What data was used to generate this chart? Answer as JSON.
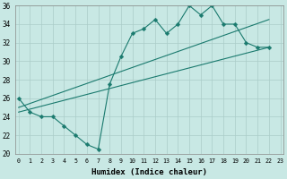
{
  "xlabel": "Humidex (Indice chaleur)",
  "xlim_min": -0.3,
  "xlim_max": 23.3,
  "ylim_min": 20,
  "ylim_max": 36,
  "xticks": [
    0,
    1,
    2,
    3,
    4,
    5,
    6,
    7,
    8,
    9,
    10,
    11,
    12,
    13,
    14,
    15,
    16,
    17,
    18,
    19,
    20,
    21,
    22,
    23
  ],
  "yticks": [
    20,
    22,
    24,
    26,
    28,
    30,
    32,
    34,
    36
  ],
  "bg_color": "#c8e8e4",
  "line_color": "#1a7a6e",
  "grid_color": "#aaccc8",
  "main_line_x": [
    0,
    1,
    2,
    3,
    4,
    5,
    6,
    7,
    8,
    9,
    10,
    11,
    12,
    13,
    14,
    15,
    16,
    17,
    18,
    19,
    20,
    21,
    22
  ],
  "main_line_y": [
    26,
    24.5,
    24,
    24,
    23,
    22,
    21,
    20.5,
    27.5,
    30.5,
    33,
    33.5,
    34.5,
    33,
    34,
    36,
    35,
    36,
    34,
    34,
    32,
    31.5,
    31.5
  ],
  "upper_line_x": [
    0,
    22
  ],
  "upper_line_y": [
    25,
    34.5
  ],
  "lower_line_x": [
    0,
    22
  ],
  "lower_line_y": [
    24.5,
    31.5
  ],
  "markersize": 2.5,
  "linewidth": 0.8
}
